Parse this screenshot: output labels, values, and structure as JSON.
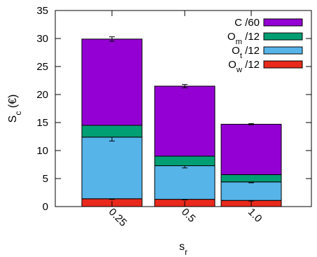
{
  "chart_data": {
    "type": "bar",
    "stacked": true,
    "categories": [
      "0.25",
      "0.5",
      "1.0"
    ],
    "series": [
      {
        "name": "O_w /12",
        "color": "#e8291c",
        "values": [
          1.4,
          1.3,
          1.1
        ],
        "errors": [
          0.1,
          0.1,
          0.1
        ]
      },
      {
        "name": "O_t /12",
        "color": "#56b4e9",
        "values": [
          11.0,
          6.0,
          3.3
        ],
        "errors": [
          0.7,
          0.4,
          0.15
        ]
      },
      {
        "name": "O_m /12",
        "color": "#009e73",
        "values": [
          2.1,
          1.7,
          1.3
        ],
        "errors": [
          0.0,
          0.0,
          0.0
        ]
      },
      {
        "name": "C /60",
        "color": "#9400d3",
        "values": [
          15.4,
          12.5,
          9.0
        ],
        "errors": [
          0.4,
          0.3,
          0.1
        ]
      }
    ],
    "xlabel": "s_r",
    "ylabel": "S_c (€)",
    "ylim": [
      0,
      35
    ],
    "yticks": [
      0,
      5,
      10,
      15,
      20,
      25,
      30,
      35
    ],
    "grid": false,
    "legend_position": "top-right"
  }
}
